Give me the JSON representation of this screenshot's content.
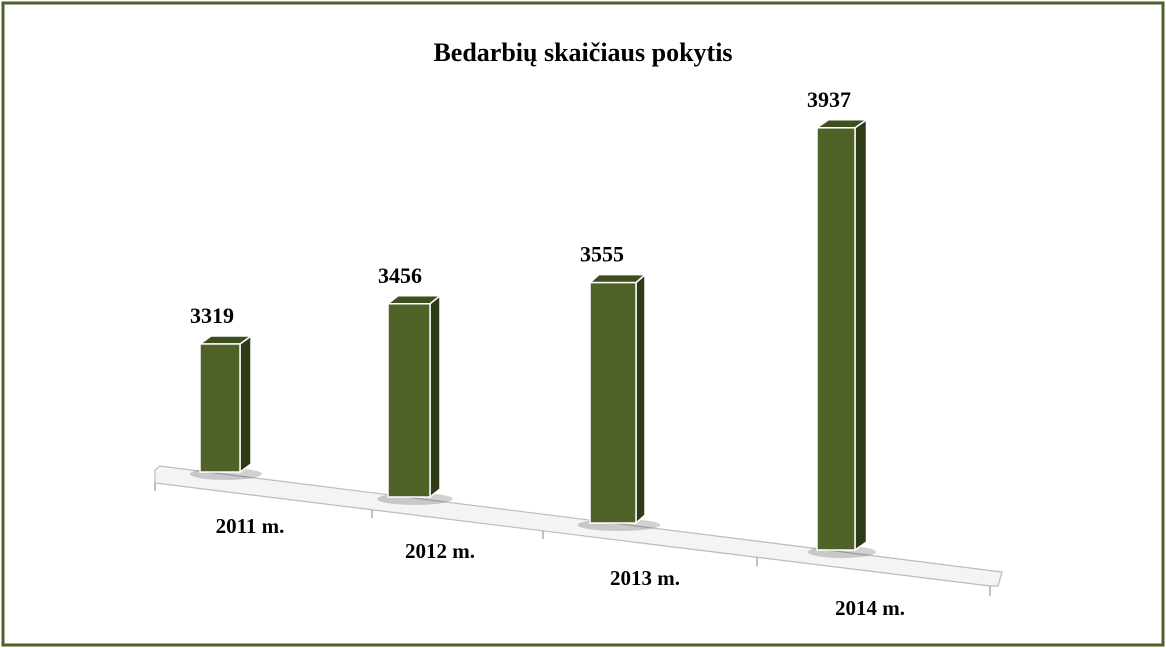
{
  "chart_data": {
    "type": "bar3d",
    "title": "Bedarbių skaičiaus pokytis",
    "categories": [
      "2011 m.",
      "2012 m.",
      "2013 m.",
      "2014 m."
    ],
    "values": [
      3319,
      3456,
      3555,
      3937
    ],
    "color": "#4f6228",
    "ylim": [
      3050,
      4000
    ]
  }
}
